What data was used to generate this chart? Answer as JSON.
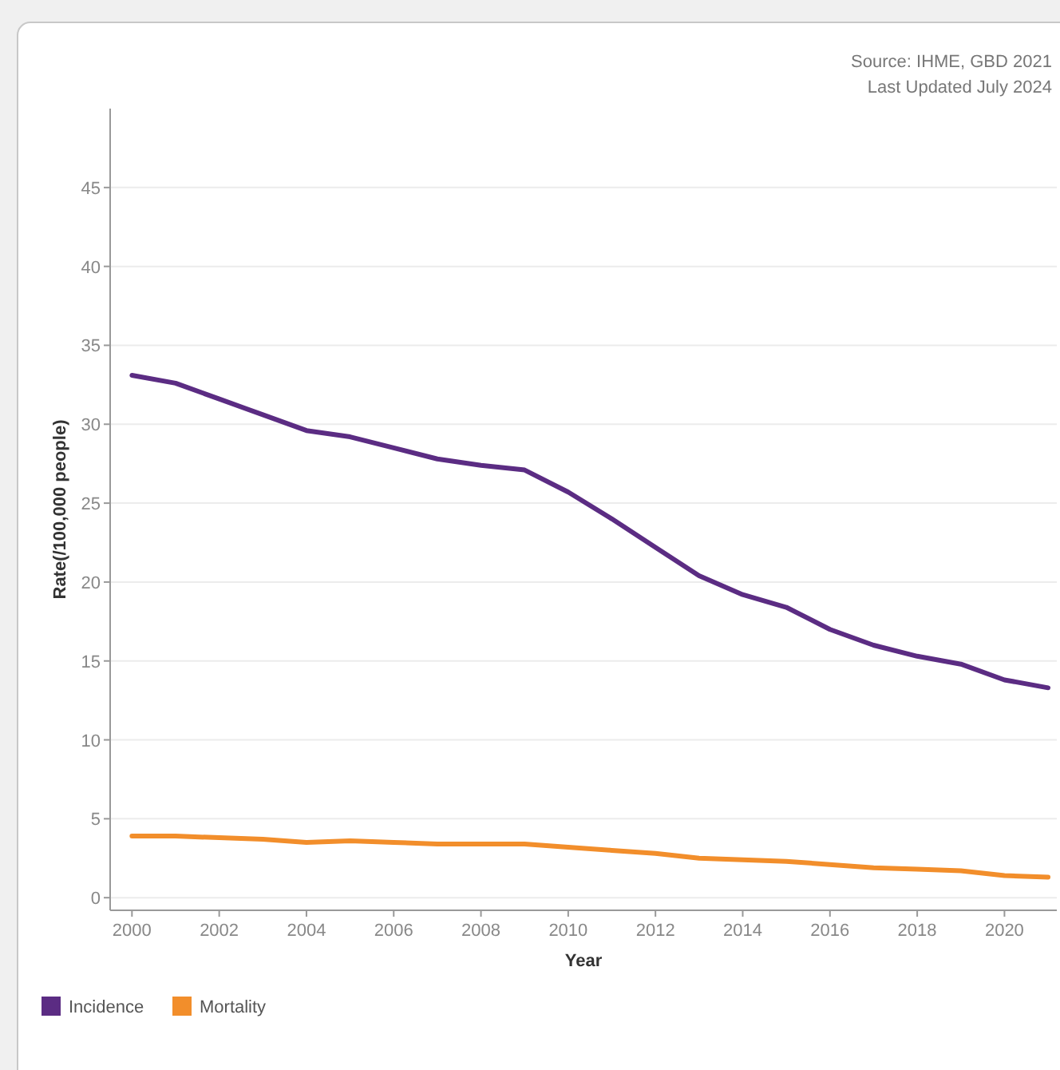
{
  "chart_data": {
    "type": "line",
    "xlabel": "Year",
    "ylabel": "Rate(/100,000 people)",
    "annotations": [
      "Source: IHME, GBD 2021",
      "Last Updated July 2024"
    ],
    "x": [
      2000,
      2001,
      2002,
      2003,
      2004,
      2005,
      2006,
      2007,
      2008,
      2009,
      2010,
      2011,
      2012,
      2013,
      2014,
      2015,
      2016,
      2017,
      2018,
      2019,
      2020,
      2021
    ],
    "series": [
      {
        "name": "Incidence",
        "color": "#5b2c83",
        "values": [
          33.1,
          32.6,
          31.6,
          30.6,
          29.6,
          29.2,
          28.5,
          27.8,
          27.4,
          27.1,
          25.7,
          24.0,
          22.2,
          20.4,
          19.2,
          18.4,
          17.0,
          16.0,
          15.3,
          14.8,
          13.8,
          13.3
        ]
      },
      {
        "name": "Mortality",
        "color": "#f28e2b",
        "values": [
          3.9,
          3.9,
          3.8,
          3.7,
          3.5,
          3.6,
          3.5,
          3.4,
          3.4,
          3.4,
          3.2,
          3.0,
          2.8,
          2.5,
          2.4,
          2.3,
          2.1,
          1.9,
          1.8,
          1.7,
          1.4,
          1.3
        ]
      }
    ],
    "xlim": [
      1999.5,
      2021.2
    ],
    "xticks": [
      2000,
      2002,
      2004,
      2006,
      2008,
      2010,
      2012,
      2014,
      2016,
      2018,
      2020
    ],
    "ylim": [
      -0.8,
      50
    ],
    "yticks": [
      0,
      5,
      10,
      15,
      20,
      25,
      30,
      35,
      40,
      45
    ],
    "grid": "y",
    "legend": "bottom",
    "marker": "none",
    "line_style": "solid"
  }
}
